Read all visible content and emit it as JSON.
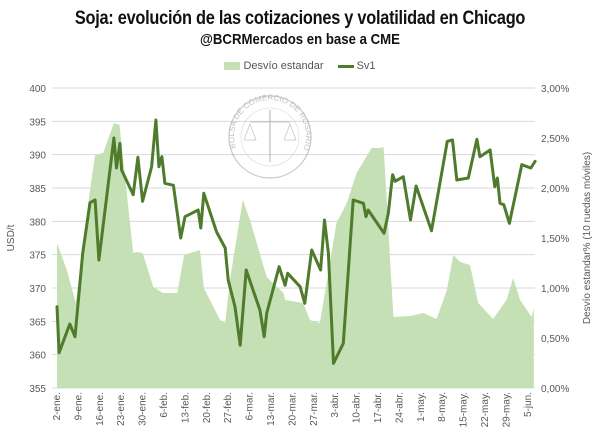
{
  "chart_data": {
    "type": "line",
    "title": "Soja: evolución de las cotizaciones y volatilidad en Chicago",
    "subtitle": "@BCRMercados en base a CME",
    "watermark": "BOLSA DE COMERCIO DE ROSARIO",
    "ylabel": "USD/t",
    "y2label": "Desvío estandar% (10 ruedas móviles)",
    "ylim": [
      355,
      400
    ],
    "y2lim": [
      0,
      3
    ],
    "yticks": [
      "355",
      "360",
      "365",
      "370",
      "375",
      "380",
      "385",
      "390",
      "395",
      "400"
    ],
    "y2ticks": [
      "0,00%",
      "0,50%",
      "1,00%",
      "1,50%",
      "2,00%",
      "2,50%",
      "3,00%"
    ],
    "xticks": [
      "2-ene.",
      "9-ene.",
      "16-ene.",
      "23-ene.",
      "30-ene.",
      "6-feb.",
      "13-feb.",
      "20-feb.",
      "27-feb.",
      "6-mar.",
      "13-mar.",
      "20-mar.",
      "27-mar.",
      "3-abr.",
      "10-abr.",
      "17-abr.",
      "24-abr.",
      "1-may.",
      "8-may.",
      "15-may.",
      "22-may.",
      "29-may.",
      "5-jun."
    ],
    "x_unit": "trading day index (tick every 5 days)",
    "legend_position": "top",
    "grid": true,
    "series": [
      {
        "name": "Desvío estandar",
        "type": "area",
        "axis": "right",
        "color": "#c5e0b4",
        "points": [
          [
            0,
            1.45
          ],
          [
            2.3,
            1.18
          ],
          [
            4.4,
            0.85
          ],
          [
            7.7,
            1.98
          ],
          [
            8.9,
            2.33
          ],
          [
            10.8,
            2.35
          ],
          [
            13.3,
            2.65
          ],
          [
            14.6,
            2.63
          ],
          [
            16.4,
            1.91
          ],
          [
            17.8,
            1.35
          ],
          [
            18.6,
            1.36
          ],
          [
            20,
            1.35
          ],
          [
            22.5,
            1.01
          ],
          [
            24.8,
            0.95
          ],
          [
            28.1,
            0.95
          ],
          [
            29.7,
            1.33
          ],
          [
            33.4,
            1.38
          ],
          [
            34.3,
            1.0
          ],
          [
            38.1,
            0.68
          ],
          [
            39.3,
            0.65
          ],
          [
            40.4,
            1.08
          ],
          [
            43.4,
            1.88
          ],
          [
            45.1,
            1.68
          ],
          [
            49,
            1.11
          ],
          [
            52.9,
            0.95
          ],
          [
            53.3,
            0.88
          ],
          [
            57.5,
            0.85
          ],
          [
            59.1,
            0.68
          ],
          [
            61.4,
            0.65
          ],
          [
            63,
            1.05
          ],
          [
            65.3,
            1.65
          ],
          [
            67.7,
            1.85
          ],
          [
            70,
            2.15
          ],
          [
            73.5,
            2.4
          ],
          [
            75.5,
            2.4
          ],
          [
            76.3,
            2.41
          ],
          [
            78.6,
            0.71
          ],
          [
            82.5,
            0.72
          ],
          [
            85.6,
            0.75
          ],
          [
            88.7,
            0.69
          ],
          [
            91.1,
            0.98
          ],
          [
            92.6,
            1.33
          ],
          [
            94.2,
            1.26
          ],
          [
            96.5,
            1.23
          ],
          [
            98.4,
            0.85
          ],
          [
            101.9,
            0.69
          ],
          [
            105,
            0.88
          ],
          [
            106.6,
            1.1
          ],
          [
            108.2,
            0.88
          ],
          [
            110.9,
            0.71
          ],
          [
            111.4,
            0.8
          ]
        ]
      },
      {
        "name": "Sv1",
        "type": "line",
        "axis": "left",
        "color": "#4f7b2c",
        "points": [
          [
            0,
            367.2
          ],
          [
            0.5,
            360.3
          ],
          [
            3,
            364.6
          ],
          [
            4.2,
            362.7
          ],
          [
            6,
            375.2
          ],
          [
            7.7,
            382.8
          ],
          [
            8.9,
            383.2
          ],
          [
            9.8,
            374.2
          ],
          [
            13.3,
            392.5
          ],
          [
            13.9,
            388
          ],
          [
            14.7,
            391.7
          ],
          [
            15.1,
            387.7
          ],
          [
            17.8,
            384
          ],
          [
            18.9,
            389.6
          ],
          [
            20,
            383
          ],
          [
            22.1,
            388.2
          ],
          [
            23.1,
            395.2
          ],
          [
            23.8,
            388.2
          ],
          [
            24.5,
            389.7
          ],
          [
            25.2,
            385.7
          ],
          [
            27.2,
            385.4
          ],
          [
            28.9,
            377.5
          ],
          [
            29.9,
            380.7
          ],
          [
            33,
            381.7
          ],
          [
            33.6,
            379
          ],
          [
            34.3,
            384.2
          ],
          [
            37.3,
            378.4
          ],
          [
            39.3,
            376
          ],
          [
            40,
            371.2
          ],
          [
            41.6,
            367.2
          ],
          [
            42.8,
            361.4
          ],
          [
            44.2,
            372.7
          ],
          [
            47.4,
            366.7
          ],
          [
            48.4,
            362.7
          ],
          [
            49,
            366.2
          ],
          [
            51.9,
            373.2
          ],
          [
            53.3,
            370.4
          ],
          [
            53.9,
            372.2
          ],
          [
            56.8,
            370.2
          ],
          [
            57.9,
            367.7
          ],
          [
            59.5,
            375.7
          ],
          [
            61.6,
            372.7
          ],
          [
            62.5,
            380.2
          ],
          [
            63.4,
            375.2
          ],
          [
            64.6,
            358.7
          ],
          [
            66.9,
            361.7
          ],
          [
            69.2,
            383.2
          ],
          [
            71.6,
            382.7
          ],
          [
            72.2,
            380.7
          ],
          [
            72.7,
            381.7
          ],
          [
            76.4,
            378.2
          ],
          [
            77.4,
            381.2
          ],
          [
            78.4,
            387
          ],
          [
            79,
            386
          ],
          [
            80.9,
            386.7
          ],
          [
            82.6,
            380.2
          ],
          [
            83.9,
            385.3
          ],
          [
            87.5,
            378.6
          ],
          [
            91.2,
            392
          ],
          [
            92.4,
            392.2
          ],
          [
            93.4,
            386.2
          ],
          [
            96.1,
            386.5
          ],
          [
            98.1,
            392.3
          ],
          [
            98.8,
            389.7
          ],
          [
            101.2,
            390.7
          ],
          [
            102.3,
            385.2
          ],
          [
            102.9,
            386.5
          ],
          [
            103.5,
            382.7
          ],
          [
            104.4,
            382.5
          ],
          [
            105.7,
            379.7
          ],
          [
            108.6,
            388.5
          ],
          [
            110.7,
            388
          ],
          [
            111.7,
            389
          ]
        ]
      }
    ]
  }
}
